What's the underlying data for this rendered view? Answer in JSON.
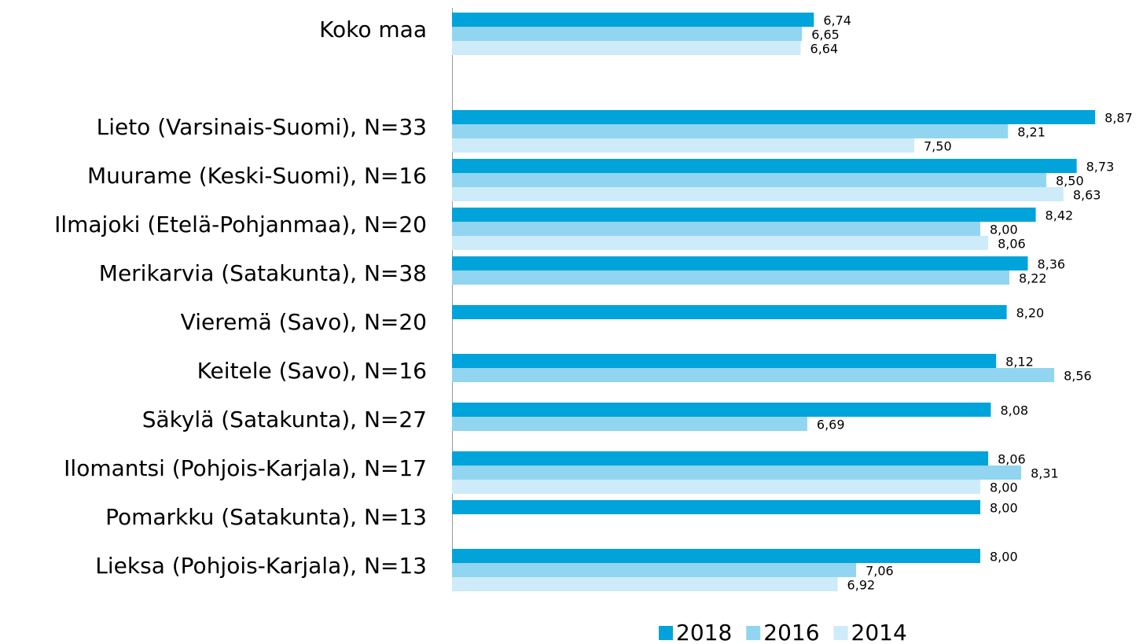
{
  "chart_data": {
    "type": "barh",
    "categories": [
      "Koko maa",
      null,
      "Lieto (Varsinais-Suomi), N=33",
      "Muurame (Keski-Suomi), N=16",
      "Ilmajoki (Etelä-Pohjanmaa), N=20",
      "Merikarvia (Satakunta), N=38",
      "Vieremä (Savo), N=20",
      "Keitele (Savo), N=16",
      "Säkylä (Satakunta), N=27",
      "Ilomantsi (Pohjois-Karjala), N=17",
      "Pomarkku (Satakunta), N=13",
      "Lieksa (Pohjois-Karjala), N=13"
    ],
    "series": [
      {
        "name": "2018",
        "color": "#00a3da",
        "values": [
          6.74,
          null,
          8.87,
          8.73,
          8.42,
          8.36,
          8.2,
          8.12,
          8.08,
          8.06,
          8.0,
          8.0
        ],
        "value_labels": [
          "6,74",
          null,
          "8,87",
          "8,73",
          "8,42",
          "8,36",
          "8,20",
          "8,12",
          "8,08",
          "8,06",
          "8,00",
          "8,00"
        ]
      },
      {
        "name": "2016",
        "color": "#92d5f0",
        "values": [
          6.65,
          null,
          8.21,
          8.5,
          8.0,
          8.22,
          null,
          8.56,
          6.69,
          8.31,
          null,
          7.06
        ],
        "value_labels": [
          "6,65",
          null,
          "8,21",
          "8,50",
          "8,00",
          "8,22",
          null,
          "8,56",
          "6,69",
          "8,31",
          null,
          "7,06"
        ]
      },
      {
        "name": "2014",
        "color": "#cdebf8",
        "values": [
          6.64,
          null,
          7.5,
          8.63,
          8.06,
          null,
          null,
          null,
          null,
          8.0,
          null,
          6.92
        ],
        "value_labels": [
          "6,64",
          null,
          "7,50",
          "8,63",
          "8,06",
          null,
          null,
          null,
          null,
          "8,00",
          null,
          "6,92"
        ]
      }
    ],
    "xlim": [
      4,
      9
    ],
    "legend": "bottom"
  }
}
